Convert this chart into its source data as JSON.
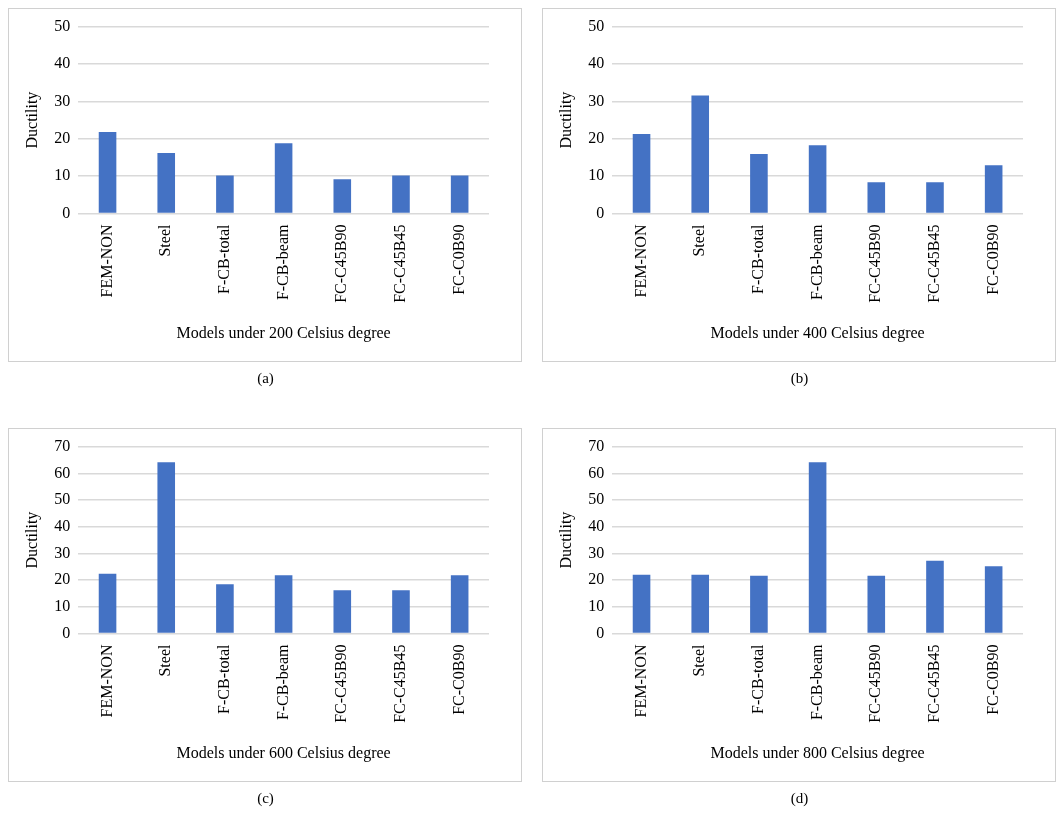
{
  "chart_data": [
    {
      "type": "bar",
      "xlabel": "Models under 200 Celsius degree",
      "ylabel": "Ductility",
      "categories": [
        "FEM-NON",
        "Steel",
        "F-CB-total",
        "F-CB-beam",
        "FC-C45B90",
        "FC-C45B45",
        "FC-C0B90"
      ],
      "values": [
        21.8,
        16.2,
        10.2,
        18.8,
        9.2,
        10.2,
        10.2
      ],
      "color": "#4472c4",
      "ylim": [
        0,
        50
      ],
      "yticks": [
        0,
        10,
        20,
        30,
        40,
        50
      ],
      "grid": "y",
      "annotations": [
        "(a)"
      ]
    },
    {
      "type": "bar",
      "xlabel": "Models under 400 Celsius degree",
      "ylabel": "Ductility",
      "categories": [
        "FEM-NON",
        "Steel",
        "F-CB-total",
        "F-CB-beam",
        "FC-C45B90",
        "FC-C45B45",
        "FC-C0B90"
      ],
      "values": [
        21.3,
        31.6,
        15.9,
        18.3,
        8.4,
        8.4,
        12.9
      ],
      "color": "#4472c4",
      "ylim": [
        0,
        50
      ],
      "yticks": [
        0,
        10,
        20,
        30,
        40,
        50
      ],
      "grid": "y",
      "annotations": [
        "(b)"
      ]
    },
    {
      "type": "bar",
      "xlabel": "Models under 600 Celsius degree",
      "ylabel": "Ductility",
      "categories": [
        "FEM-NON",
        "Steel",
        "F-CB-total",
        "F-CB-beam",
        "FC-C45B90",
        "FC-C45B45",
        "FC-C0B90"
      ],
      "values": [
        22.4,
        64.1,
        18.5,
        21.8,
        16.2,
        16.2,
        21.8
      ],
      "color": "#4472c4",
      "ylim": [
        0,
        70
      ],
      "yticks": [
        0,
        10,
        20,
        30,
        40,
        50,
        60,
        70
      ],
      "grid": "y",
      "annotations": [
        "(c)"
      ]
    },
    {
      "type": "bar",
      "xlabel": "Models under 800 Celsius degree",
      "ylabel": "Ductility",
      "categories": [
        "FEM-NON",
        "Steel",
        "F-CB-total",
        "F-CB-beam",
        "FC-C45B90",
        "FC-C45B45",
        "FC-C0B90"
      ],
      "values": [
        22,
        22,
        21.6,
        64.1,
        21.6,
        27.3,
        25.2
      ],
      "color": "#4472c4",
      "ylim": [
        0,
        70
      ],
      "yticks": [
        0,
        10,
        20,
        30,
        40,
        50,
        60,
        70
      ],
      "grid": "y",
      "annotations": [
        "(d)"
      ]
    }
  ]
}
